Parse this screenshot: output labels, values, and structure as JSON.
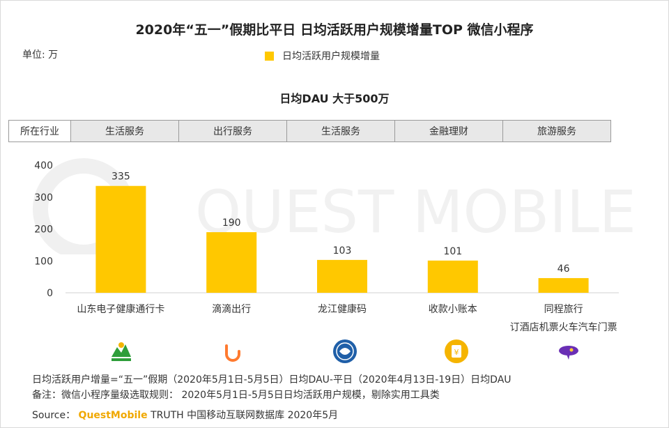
{
  "title": "2020年“五一”假期比平日 日均活跃用户规模增量TOP 微信小程序",
  "unit": "单位: 万",
  "legend_label": "日均活跃用户规模增量",
  "subtitle": "日均DAU 大于500万",
  "watermark": "QUEST MOBILE",
  "industry_header": "所在行业",
  "industries": [
    "生活服务",
    "出行服务",
    "生活服务",
    "金融理财",
    "旅游服务"
  ],
  "colors": {
    "bar": "#FFC800",
    "accent": "#F0A800"
  },
  "chart_data": {
    "type": "bar",
    "categories": [
      "山东电子健康通行卡",
      "滴滴出行",
      "龙江健康码",
      "收款小账本",
      "同程旅行"
    ],
    "category_sublabels": [
      "",
      "",
      "",
      "",
      "订酒店机票火车汽车门票"
    ],
    "values": [
      335,
      190,
      103,
      101,
      46
    ],
    "value_labels": [
      "335",
      "190",
      "103",
      "101",
      "46"
    ],
    "ylim": [
      0,
      400
    ],
    "yticks": [
      0,
      100,
      200,
      300,
      400
    ],
    "ytick_labels": [
      "0",
      "100",
      "200",
      "300",
      "400"
    ],
    "legend": "top-center",
    "grid": false
  },
  "icons": [
    "shandong-health-pass-icon",
    "didi-icon",
    "longjiang-health-code-icon",
    "collection-ledger-icon",
    "tongcheng-travel-icon"
  ],
  "footnotes": {
    "line1": "日均活跃用户增量=“五一”假期（2020年5月1日-5月5日）日均DAU-平日（2020年4月13日-19日）日均DAU",
    "line2": "备注：微信小程序量级选取规则： 2020年5月1日-5月5日日均活跃用户规模，剔除实用工具类",
    "source_prefix": "Source：",
    "source_brand": "QuestMobile",
    "source_rest": "TRUTH 中国移动互联网数据库 2020年5月"
  }
}
